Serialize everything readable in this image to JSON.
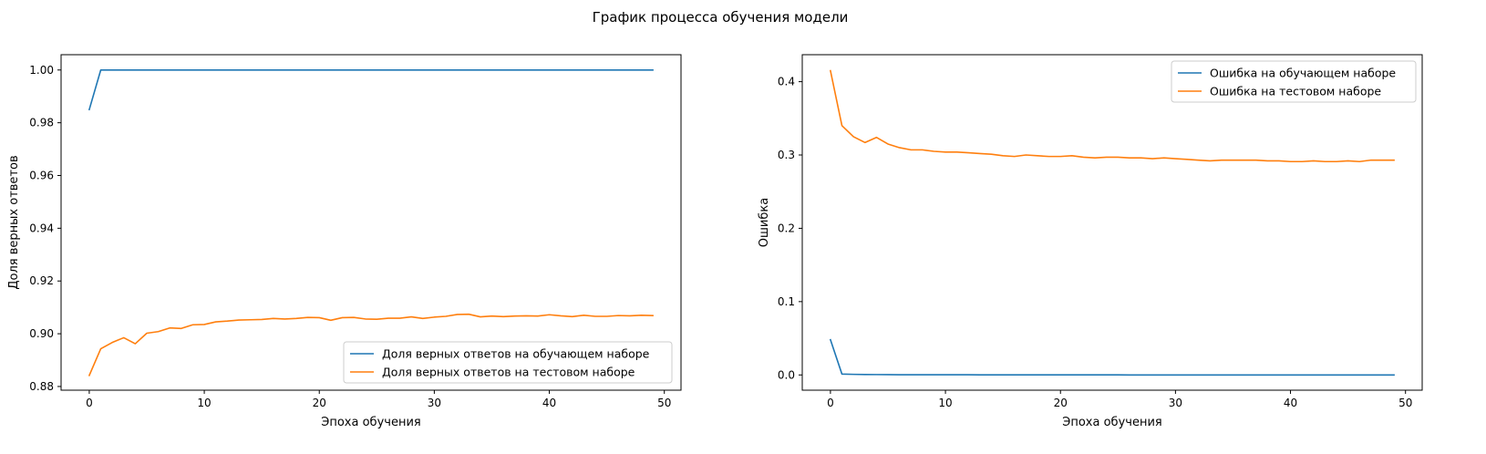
{
  "figure": {
    "suptitle": "График процесса обучения модели",
    "colors": {
      "train": "#1f77b4",
      "test": "#ff7f0e",
      "axis": "#000000"
    }
  },
  "chart_data": [
    {
      "type": "line",
      "xlabel": "Эпоха обучения",
      "ylabel": "Доля верных ответов",
      "xlim": [
        -2.45,
        51.45
      ],
      "ylim": [
        0.8786,
        1.0058
      ],
      "xticks": [
        0,
        10,
        20,
        30,
        40,
        50
      ],
      "yticks": [
        0.88,
        0.9,
        0.92,
        0.94,
        0.96,
        0.98,
        1.0
      ],
      "ytick_labels": [
        "0.88",
        "0.90",
        "0.92",
        "0.94",
        "0.96",
        "0.98",
        "1.00"
      ],
      "legend_position": "lower right",
      "x": [
        0,
        1,
        2,
        3,
        4,
        5,
        6,
        7,
        8,
        9,
        10,
        11,
        12,
        13,
        14,
        15,
        16,
        17,
        18,
        19,
        20,
        21,
        22,
        23,
        24,
        25,
        26,
        27,
        28,
        29,
        30,
        31,
        32,
        33,
        34,
        35,
        36,
        37,
        38,
        39,
        40,
        41,
        42,
        43,
        44,
        45,
        46,
        47,
        48,
        49
      ],
      "series": [
        {
          "name": "Доля верных ответов на обучающем наборе",
          "color": "#1f77b4",
          "values": [
            0.985,
            1,
            1,
            1,
            1,
            1,
            1,
            1,
            1,
            1,
            1,
            1,
            1,
            1,
            1,
            1,
            1,
            1,
            1,
            1,
            1,
            1,
            1,
            1,
            1,
            1,
            1,
            1,
            1,
            1,
            1,
            1,
            1,
            1,
            1,
            1,
            1,
            1,
            1,
            1,
            1,
            1,
            1,
            1,
            1,
            1,
            1,
            1,
            1,
            1
          ]
        },
        {
          "name": "Доля верных ответов на тестовом наборе",
          "color": "#ff7f0e",
          "values": [
            0.8842,
            0.8943,
            0.8967,
            0.8985,
            0.8962,
            0.9002,
            0.9008,
            0.9022,
            0.902,
            0.9034,
            0.9035,
            0.9045,
            0.9048,
            0.9052,
            0.9053,
            0.9054,
            0.9058,
            0.9056,
            0.9058,
            0.9062,
            0.9061,
            0.9051,
            0.9061,
            0.9062,
            0.9056,
            0.9055,
            0.9059,
            0.9059,
            0.9064,
            0.9058,
            0.9063,
            0.9066,
            0.9073,
            0.9074,
            0.9064,
            0.9067,
            0.9065,
            0.9067,
            0.9068,
            0.9067,
            0.9072,
            0.9068,
            0.9065,
            0.907,
            0.9066,
            0.9066,
            0.9069,
            0.9068,
            0.907,
            0.9069
          ]
        }
      ]
    },
    {
      "type": "line",
      "xlabel": "Эпоха обучения",
      "ylabel": "Ошибка",
      "xlim": [
        -2.45,
        51.45
      ],
      "ylim": [
        -0.0208,
        0.4368
      ],
      "xticks": [
        0,
        10,
        20,
        30,
        40,
        50
      ],
      "yticks": [
        0.0,
        0.1,
        0.2,
        0.3,
        0.4
      ],
      "ytick_labels": [
        "0.0",
        "0.1",
        "0.2",
        "0.3",
        "0.4"
      ],
      "legend_position": "upper right",
      "x": [
        0,
        1,
        2,
        3,
        4,
        5,
        6,
        7,
        8,
        9,
        10,
        11,
        12,
        13,
        14,
        15,
        16,
        17,
        18,
        19,
        20,
        21,
        22,
        23,
        24,
        25,
        26,
        27,
        28,
        29,
        30,
        31,
        32,
        33,
        34,
        35,
        36,
        37,
        38,
        39,
        40,
        41,
        42,
        43,
        44,
        45,
        46,
        47,
        48,
        49
      ],
      "series": [
        {
          "name": "Ошибка на обучающем наборе",
          "color": "#1f77b4",
          "values": [
            0.048,
            0.0012,
            0.0008,
            0.0006,
            0.0005,
            0.0004,
            0.0003,
            0.0003,
            0.0002,
            0.0002,
            0.0002,
            0.0002,
            0.0002,
            0.0001,
            0.0001,
            0.0001,
            0.0001,
            0.0001,
            0.0001,
            0.0001,
            0.0001,
            0.0001,
            0.0001,
            0.0001,
            0.0001,
            0.0001,
            0,
            0,
            0,
            0,
            0,
            0,
            0,
            0,
            0,
            0,
            0,
            0,
            0,
            0,
            0,
            0,
            0,
            0,
            0,
            0,
            0,
            0,
            0,
            0
          ]
        },
        {
          "name": "Ошибка на тестовом наборе",
          "color": "#ff7f0e",
          "values": [
            0.415,
            0.34,
            0.325,
            0.317,
            0.324,
            0.315,
            0.31,
            0.307,
            0.307,
            0.305,
            0.304,
            0.304,
            0.303,
            0.302,
            0.301,
            0.299,
            0.298,
            0.3,
            0.299,
            0.298,
            0.298,
            0.299,
            0.297,
            0.296,
            0.297,
            0.297,
            0.296,
            0.296,
            0.295,
            0.296,
            0.295,
            0.294,
            0.293,
            0.292,
            0.293,
            0.293,
            0.293,
            0.293,
            0.292,
            0.292,
            0.291,
            0.291,
            0.292,
            0.291,
            0.291,
            0.292,
            0.291,
            0.293,
            0.293,
            0.293
          ]
        }
      ]
    }
  ]
}
